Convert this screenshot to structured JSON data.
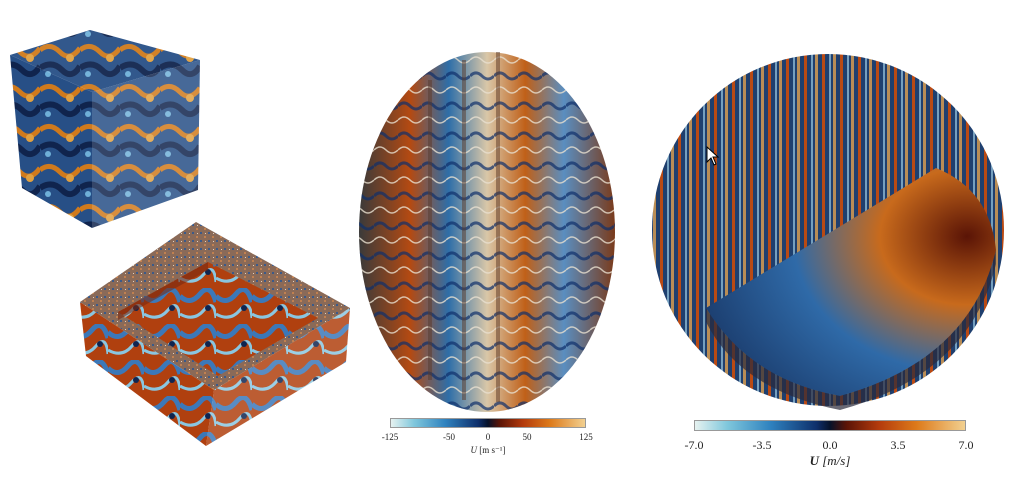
{
  "figure": {
    "panels": [
      "cube-and-box",
      "sphere-segments",
      "cutaway-sphere"
    ]
  },
  "colorbar_left": {
    "ticks": [
      "-125",
      "-50",
      "0",
      "50",
      "125"
    ],
    "tick_values": [
      -125,
      -50,
      0,
      50,
      125
    ],
    "range": [
      -125,
      125
    ],
    "title_symbol": "U",
    "title_units": "[m s⁻¹]"
  },
  "colorbar_right": {
    "ticks": [
      "-7.0",
      "-3.5",
      "0.0",
      "3.5",
      "7.0"
    ],
    "tick_values": [
      -7.0,
      -3.5,
      0.0,
      3.5,
      7.0
    ],
    "range": [
      -7.0,
      7.0
    ],
    "title_symbol": "U",
    "title_units": "[m/s]"
  },
  "colormap": {
    "low": "#e6f2f0",
    "mid_low": "#2f82bf",
    "center": "#06122a",
    "mid_high": "#dd7a1a",
    "high": "#f2d090"
  },
  "cursor_icon": "arrow-pointer-icon"
}
